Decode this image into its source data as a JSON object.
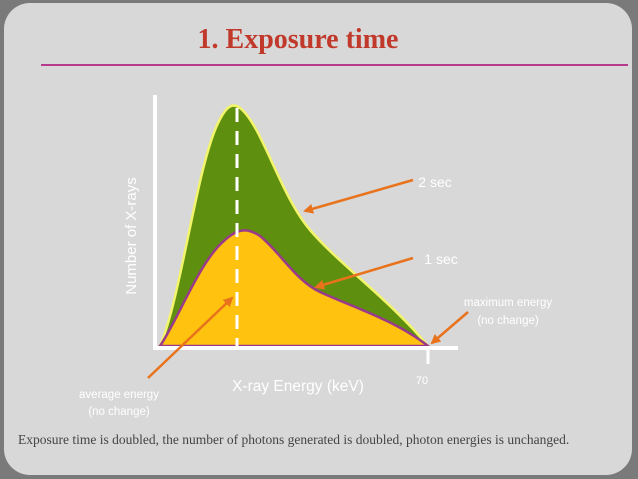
{
  "title": "1. Exposure time",
  "diagram": {
    "y_axis_label": "Number of X-rays",
    "x_axis_label": "X-ray Energy (keV)",
    "tick_label": "70",
    "series_2sec_label": "2 sec",
    "series_1sec_label": "1 sec",
    "max_energy_label_line1": "maximum energy",
    "max_energy_label_line2": "(no change)",
    "avg_energy_label_line1": "average energy",
    "avg_energy_label_line2": "(no change)",
    "colors": {
      "curve_2sec_fill": "#5f8f0e",
      "curve_2sec_stroke": "#f2f56a",
      "curve_1sec_fill": "#ffc20e",
      "curve_1sec_stroke": "#9a3a8a",
      "arrow": "#e8731c",
      "axis": "#ffffff"
    }
  },
  "caption": "Exposure time is doubled, the number of photons generated is doubled, photon energies is unchanged."
}
